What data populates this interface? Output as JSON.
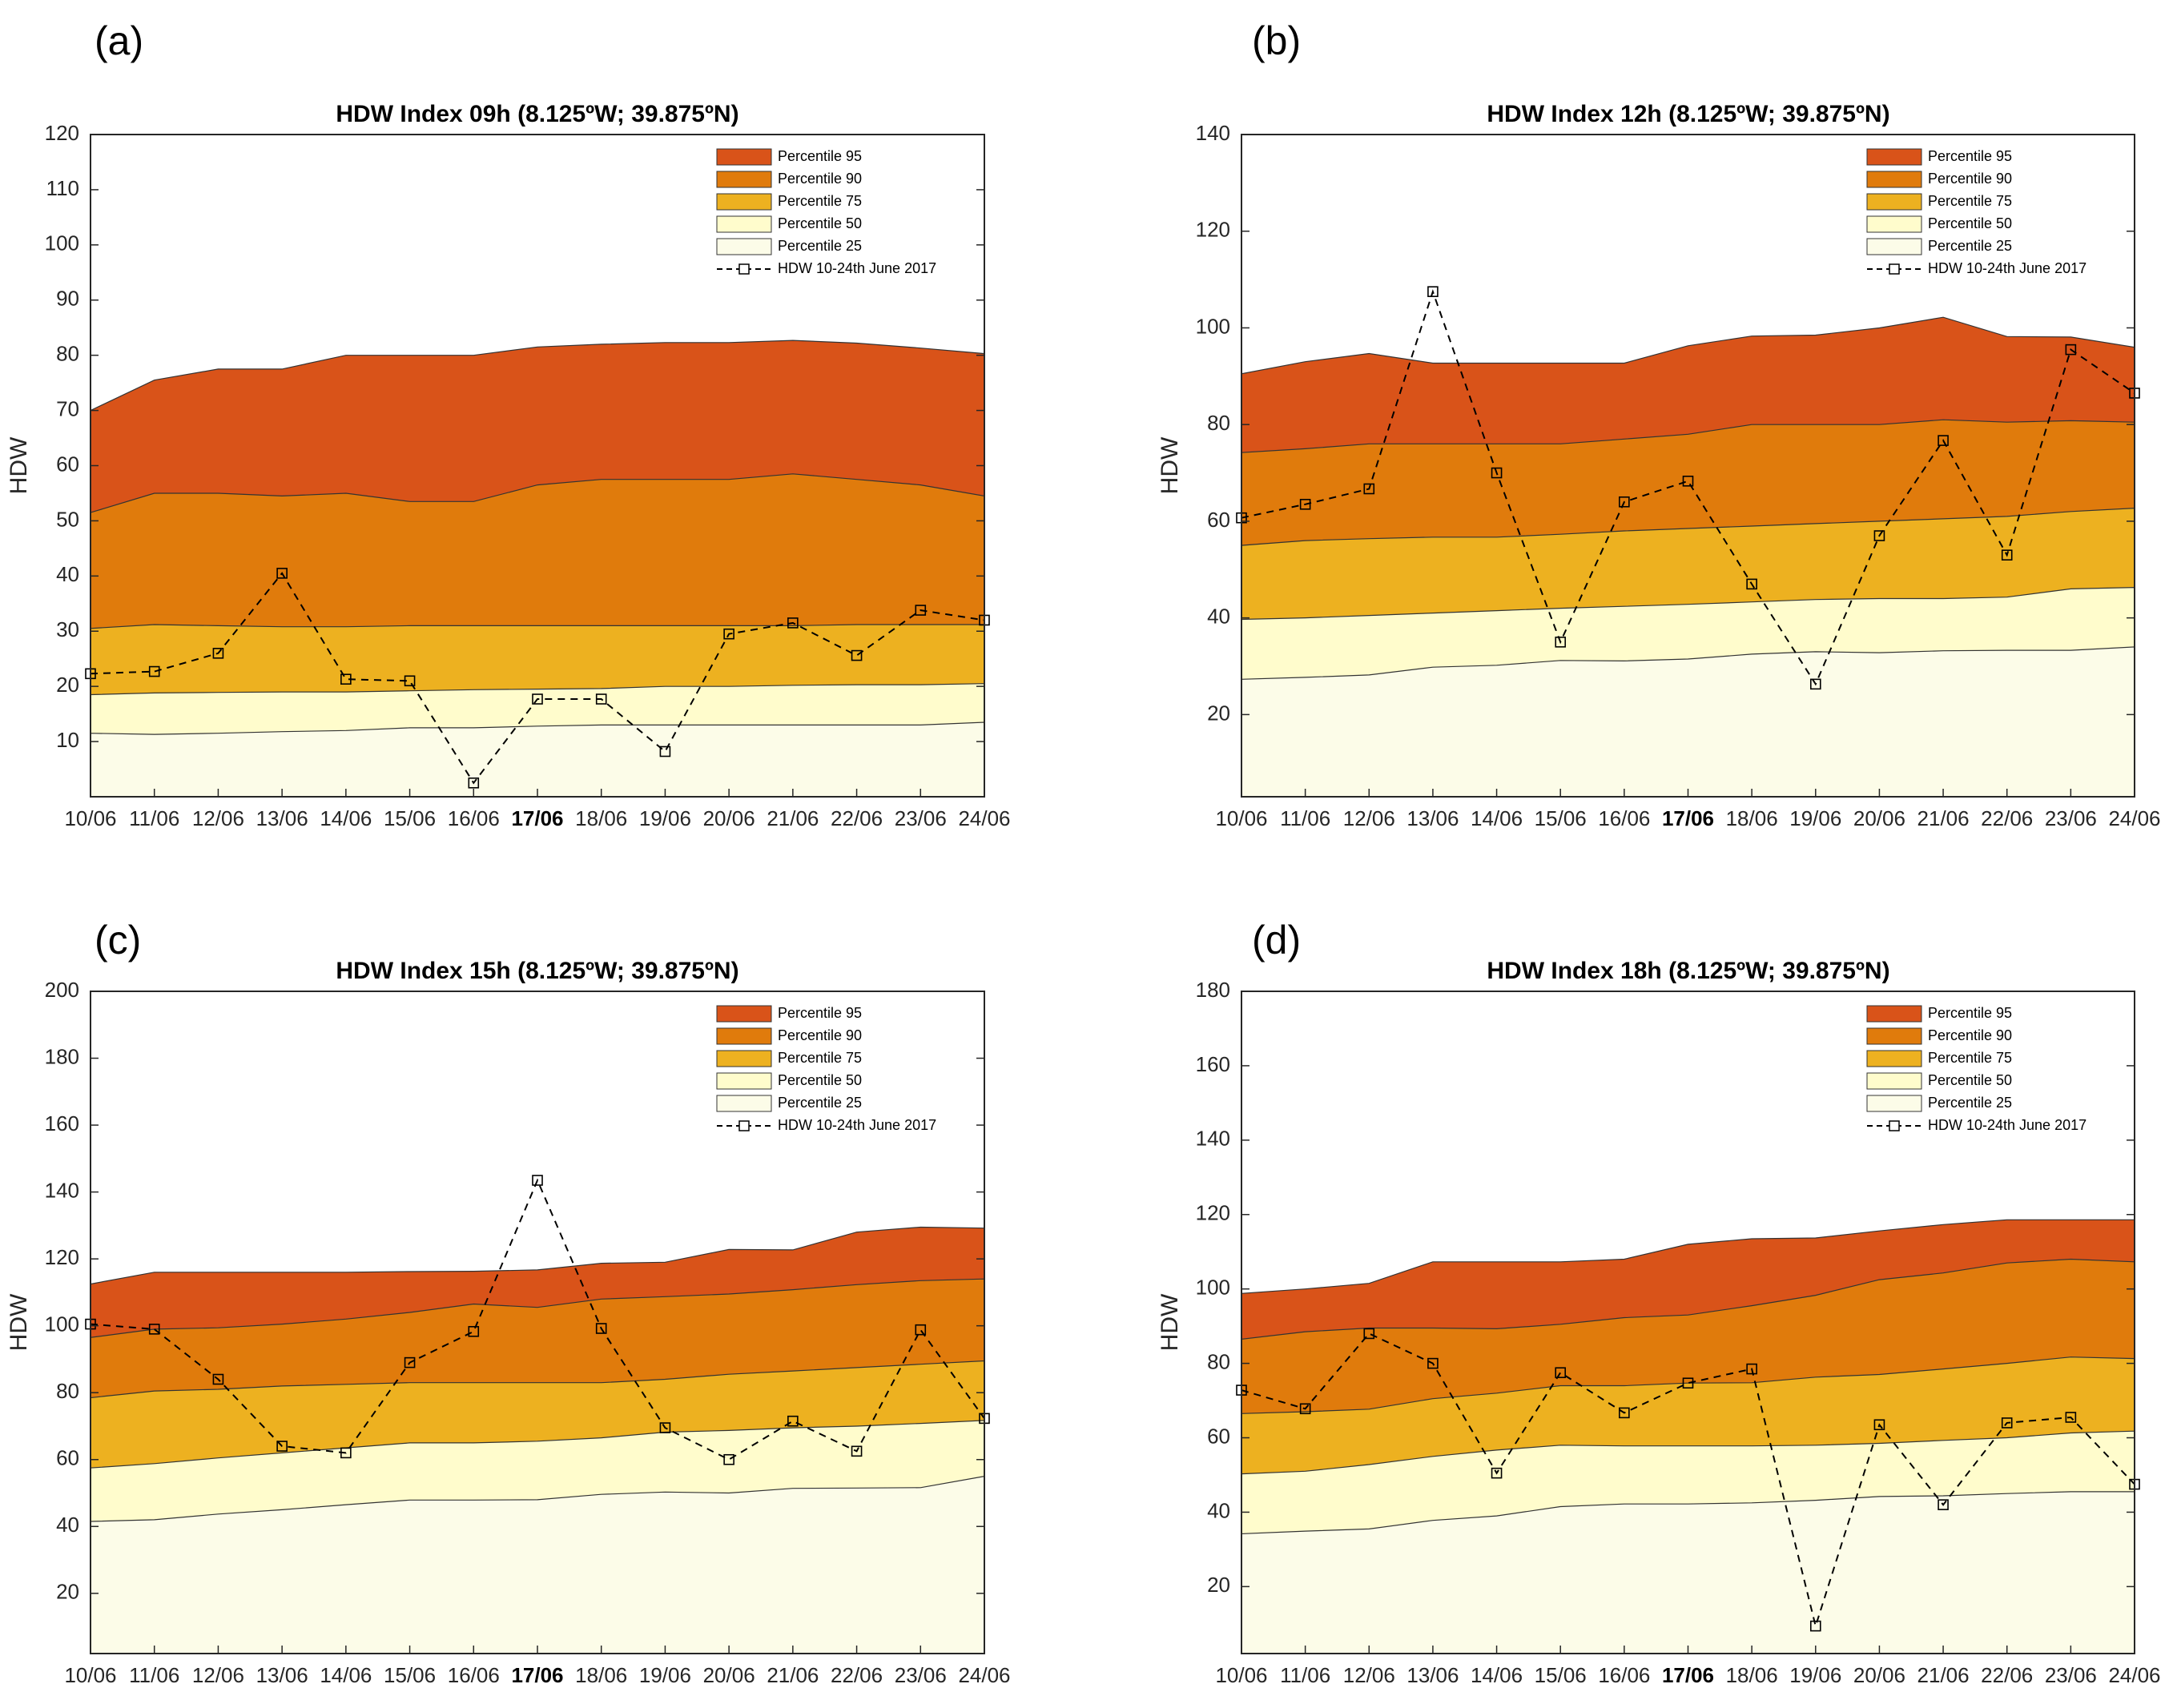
{
  "colors": {
    "p95": "#d95319",
    "p90": "#e07b0c",
    "p75": "#edb120",
    "p50": "#fffccc",
    "p25": "#fcfce8",
    "line": "#000000"
  },
  "chart_data": [
    {
      "type": "area",
      "panel_letter": "(a)",
      "title": "HDW Index 09h (8.125ºW; 39.875ºN)",
      "xlabel": "",
      "ylabel": "HDW",
      "ylim": [
        0,
        120
      ],
      "yticks": [
        10,
        20,
        30,
        40,
        50,
        60,
        70,
        80,
        90,
        100,
        110,
        120
      ],
      "categories": [
        "10/06",
        "11/06",
        "12/06",
        "13/06",
        "14/06",
        "15/06",
        "16/06",
        "17/06",
        "18/06",
        "19/06",
        "20/06",
        "21/06",
        "22/06",
        "23/06",
        "24/06"
      ],
      "bold_category": "17/06",
      "legend_position": "top-right",
      "series": [
        {
          "name": "Percentile 95",
          "key": "p95",
          "values": [
            70,
            75.5,
            77.5,
            77.5,
            80,
            80,
            80,
            81.5,
            82,
            82.3,
            82.3,
            82.7,
            82.2,
            81.3,
            80.3
          ]
        },
        {
          "name": "Percentile 90",
          "key": "p90",
          "values": [
            51.5,
            55,
            55,
            54.5,
            55,
            53.5,
            53.5,
            56.5,
            57.5,
            57.5,
            57.5,
            58.5,
            57.5,
            56.5,
            54.5
          ]
        },
        {
          "name": "Percentile 75",
          "key": "p75",
          "values": [
            30.5,
            31.2,
            31,
            30.8,
            30.8,
            31,
            31,
            31,
            31,
            31,
            31,
            31,
            31.2,
            31.2,
            31.2
          ]
        },
        {
          "name": "Percentile 50",
          "key": "p50",
          "values": [
            18.5,
            18.8,
            18.9,
            19,
            19,
            19.2,
            19.4,
            19.5,
            19.6,
            20,
            20,
            20.2,
            20.3,
            20.3,
            20.5
          ]
        },
        {
          "name": "Percentile 25",
          "key": "p25",
          "values": [
            11.5,
            11.3,
            11.5,
            11.8,
            12,
            12.5,
            12.5,
            12.8,
            13,
            13,
            13,
            13,
            13,
            13,
            13.5
          ]
        }
      ],
      "hdw_series": {
        "name": "HDW 10-24th June 2017",
        "values": [
          22.3,
          22.7,
          26,
          40.5,
          21.3,
          21,
          2.5,
          17.7,
          17.7,
          8.2,
          29.5,
          31.5,
          25.6,
          33.8,
          32
        ]
      }
    },
    {
      "type": "area",
      "panel_letter": "(b)",
      "title": "HDW Index 12h (8.125ºW; 39.875ºN)",
      "xlabel": "",
      "ylabel": "HDW",
      "ylim": [
        3,
        140
      ],
      "yticks": [
        20,
        40,
        60,
        80,
        100,
        120,
        140
      ],
      "categories": [
        "10/06",
        "11/06",
        "12/06",
        "13/06",
        "14/06",
        "15/06",
        "16/06",
        "17/06",
        "18/06",
        "19/06",
        "20/06",
        "21/06",
        "22/06",
        "23/06",
        "24/06"
      ],
      "bold_category": "17/06",
      "legend_position": "top-right",
      "series": [
        {
          "name": "Percentile 95",
          "key": "p95",
          "values": [
            90.5,
            93,
            94.7,
            92.7,
            92.7,
            92.7,
            92.7,
            96.3,
            98.3,
            98.5,
            100,
            102.2,
            98.2,
            98.1,
            96
          ]
        },
        {
          "name": "Percentile 90",
          "key": "p90",
          "values": [
            74.2,
            75,
            76,
            76,
            76,
            76,
            77,
            78,
            80,
            80,
            80,
            81,
            80.5,
            80.8,
            80.5
          ]
        },
        {
          "name": "Percentile 75",
          "key": "p75",
          "values": [
            55,
            56,
            56.4,
            56.7,
            56.7,
            57.3,
            58,
            58.5,
            59,
            59.5,
            60,
            60.5,
            61,
            62,
            62.7
          ]
        },
        {
          "name": "Percentile 50",
          "key": "p50",
          "values": [
            39.7,
            40,
            40.5,
            41,
            41.5,
            42,
            42.4,
            42.8,
            43.3,
            43.8,
            44,
            44,
            44.3,
            46,
            46.3
          ]
        },
        {
          "name": "Percentile 25",
          "key": "p25",
          "values": [
            27.3,
            27.7,
            28.2,
            29.8,
            30.2,
            31.2,
            31.1,
            31.5,
            32.5,
            33,
            32.8,
            33.2,
            33.3,
            33.3,
            34
          ]
        }
      ],
      "hdw_series": {
        "name": "HDW 10-24th June 2017",
        "values": [
          60.7,
          63.5,
          66.7,
          107.5,
          70,
          35,
          64,
          68.3,
          47,
          26.3,
          57,
          76.7,
          53,
          95.5,
          86.5
        ]
      }
    },
    {
      "type": "area",
      "panel_letter": "(c)",
      "title": "HDW Index 15h (8.125ºW; 39.875ºN)",
      "xlabel": "",
      "ylabel": "HDW",
      "ylim": [
        2,
        200
      ],
      "yticks": [
        20,
        40,
        60,
        80,
        100,
        120,
        140,
        160,
        180,
        200
      ],
      "categories": [
        "10/06",
        "11/06",
        "12/06",
        "13/06",
        "14/06",
        "15/06",
        "16/06",
        "17/06",
        "18/06",
        "19/06",
        "20/06",
        "21/06",
        "22/06",
        "23/06",
        "24/06"
      ],
      "bold_category": "17/06",
      "legend_position": "top-right",
      "series": [
        {
          "name": "Percentile 95",
          "key": "p95",
          "values": [
            112.5,
            116,
            116,
            116,
            116,
            116.2,
            116.3,
            116.7,
            118.7,
            119,
            122.8,
            122.7,
            128,
            129.5,
            129.2
          ]
        },
        {
          "name": "Percentile 90",
          "key": "p90",
          "values": [
            96.5,
            99,
            99.4,
            100.5,
            102,
            104,
            106.5,
            105.5,
            108,
            108.7,
            109.5,
            110.8,
            112.3,
            113.5,
            114
          ]
        },
        {
          "name": "Percentile 75",
          "key": "p75",
          "values": [
            78.5,
            80.5,
            81,
            82,
            82.5,
            83,
            83,
            83,
            83,
            84,
            85.5,
            86.5,
            87.5,
            88.5,
            89.5
          ]
        },
        {
          "name": "Percentile 50",
          "key": "p50",
          "values": [
            57.5,
            58.8,
            60.5,
            62,
            63.5,
            65,
            65,
            65.5,
            66.5,
            68.2,
            68.7,
            69.5,
            70,
            70.8,
            71.7
          ]
        },
        {
          "name": "Percentile 25",
          "key": "p25",
          "values": [
            41.5,
            42,
            43.7,
            45,
            46.5,
            47.9,
            47.9,
            48,
            49.6,
            50.3,
            50,
            51.4,
            51.5,
            51.6,
            55
          ]
        }
      ],
      "hdw_series": {
        "name": "HDW 10-24th June 2017",
        "values": [
          100.5,
          99,
          84,
          64,
          62,
          89,
          98.3,
          143.5,
          99.2,
          69.5,
          60,
          71.5,
          62.5,
          98.8,
          72.3
        ]
      }
    },
    {
      "type": "area",
      "panel_letter": "(d)",
      "title": "HDW Index 18h (8.125ºW; 39.875ºN)",
      "xlabel": "",
      "ylabel": "HDW",
      "ylim": [
        2,
        180
      ],
      "yticks": [
        20,
        40,
        60,
        80,
        100,
        120,
        140,
        160,
        180
      ],
      "categories": [
        "10/06",
        "11/06",
        "12/06",
        "13/06",
        "14/06",
        "15/06",
        "16/06",
        "17/06",
        "18/06",
        "19/06",
        "20/06",
        "21/06",
        "22/06",
        "23/06",
        "24/06"
      ],
      "bold_category": "17/06",
      "legend_position": "top-right",
      "series": [
        {
          "name": "Percentile 95",
          "key": "p95",
          "values": [
            98.8,
            100,
            101.5,
            107.3,
            107.3,
            107.3,
            108,
            112,
            113.5,
            113.7,
            115.6,
            117.3,
            118.6,
            118.6,
            118.6
          ]
        },
        {
          "name": "Percentile 90",
          "key": "p90",
          "values": [
            86.5,
            88.5,
            89.5,
            89.5,
            89.3,
            90.5,
            92.3,
            93,
            95.5,
            98.3,
            102.5,
            104.3,
            107,
            108,
            107.3
          ]
        },
        {
          "name": "Percentile 75",
          "key": "p75",
          "values": [
            66.5,
            67,
            67.7,
            70.5,
            72,
            74,
            74,
            74.7,
            74.8,
            76.3,
            77,
            78.5,
            80,
            81.7,
            81.3
          ]
        },
        {
          "name": "Percentile 50",
          "key": "p50",
          "values": [
            50.3,
            51,
            52.8,
            55,
            56.7,
            58,
            57.8,
            57.8,
            57.8,
            58,
            58.5,
            59.3,
            60,
            61.3,
            61.8
          ]
        },
        {
          "name": "Percentile 25",
          "key": "p25",
          "values": [
            34.2,
            34.9,
            35.5,
            37.8,
            39,
            41.5,
            42.2,
            42.2,
            42.5,
            43.2,
            44.2,
            44.4,
            45,
            45.5,
            45.5
          ]
        }
      ],
      "hdw_series": {
        "name": "HDW 10-24th June 2017",
        "values": [
          72.8,
          67.8,
          88,
          80,
          50.5,
          77.5,
          66.7,
          74.7,
          78.5,
          9.4,
          63.5,
          42,
          64,
          65.5,
          47.5
        ]
      }
    }
  ]
}
